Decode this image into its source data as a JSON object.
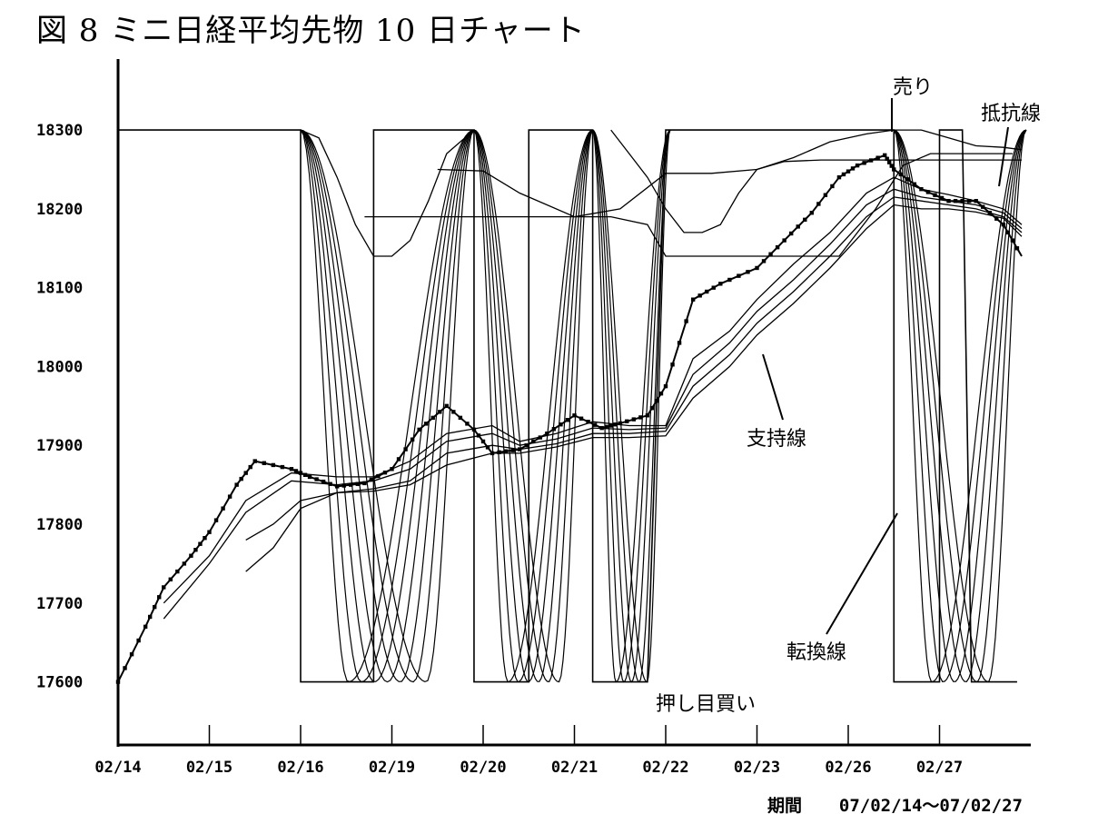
{
  "title": "図 8 ミニ日経平均先物 10 日チャート",
  "period_label": "期間",
  "period_value": "07/02/14〜07/02/27",
  "colors": {
    "line": "#000000",
    "background": "#ffffff"
  },
  "chart_data": {
    "type": "line",
    "title": "図 8 ミニ日経平均先物 10 日チャート",
    "xlabel": "",
    "ylabel": "",
    "categories": [
      "02/14",
      "02/15",
      "02/16",
      "02/19",
      "02/20",
      "02/21",
      "02/22",
      "02/23",
      "02/26",
      "02/27"
    ],
    "xlim": [
      0,
      10
    ],
    "ylim": [
      17520,
      18390
    ],
    "yticks": [
      17600,
      17700,
      17800,
      17900,
      18000,
      18100,
      18200,
      18300
    ],
    "grid": false,
    "legend": "none",
    "annotations": [
      {
        "text": "売り",
        "x": 8.5,
        "y": 18300
      },
      {
        "text": "抵抗線",
        "x": 9.25,
        "y": 18250
      },
      {
        "text": "支持線",
        "x": 7.05,
        "y": 17995
      },
      {
        "text": "転換線",
        "x": 8.55,
        "y": 17795
      },
      {
        "text": "押し目買い",
        "x": 5.9,
        "y": 17600
      }
    ],
    "series": [
      {
        "marker": "square",
        "x": [
          0,
          0.3,
          0.5,
          0.8,
          1.0,
          1.3,
          1.5,
          1.9,
          2.1,
          2.4,
          2.7,
          3.0,
          3.3,
          3.6,
          3.9,
          4.1,
          4.4,
          4.7,
          5.0,
          5.3,
          5.5,
          5.8,
          6.0,
          6.3,
          6.6,
          7.0,
          7.3,
          7.6,
          7.9,
          8.1,
          8.4,
          8.5,
          8.8,
          9.1,
          9.4,
          9.7,
          9.9
        ],
        "y": [
          17600,
          17670,
          17720,
          17760,
          17790,
          17850,
          17880,
          17870,
          17860,
          17848,
          17852,
          17870,
          17920,
          17950,
          17920,
          17890,
          17895,
          17915,
          17938,
          17922,
          17928,
          17938,
          17975,
          18085,
          18105,
          18125,
          18160,
          18195,
          18240,
          18255,
          18268,
          18250,
          18225,
          18210,
          18210,
          18180,
          18140
        ]
      },
      {
        "name": "",
        "x": [
          0.5,
          1.0,
          1.4,
          1.9,
          2.4,
          2.8,
          3.2,
          3.6,
          4.1,
          4.4,
          4.8,
          5.2,
          5.6,
          6.0,
          6.3,
          6.7,
          7.0,
          7.4,
          7.8,
          8.2,
          8.5,
          8.8,
          9.1,
          9.4,
          9.7,
          9.9
        ],
        "y": [
          17700,
          17760,
          17830,
          17865,
          17860,
          17860,
          17880,
          17915,
          17925,
          17905,
          17915,
          17930,
          17925,
          17925,
          18010,
          18045,
          18085,
          18130,
          18170,
          18220,
          18240,
          18225,
          18218,
          18210,
          18200,
          18180
        ]
      },
      {
        "name": "",
        "x": [
          0.5,
          1.0,
          1.4,
          1.9,
          2.4,
          2.8,
          3.2,
          3.6,
          4.1,
          4.4,
          4.8,
          5.2,
          5.6,
          6.0,
          6.3,
          6.7,
          7.0,
          7.4,
          7.8,
          8.2,
          8.5,
          8.8,
          9.1,
          9.4,
          9.7,
          9.9
        ],
        "y": [
          17680,
          17750,
          17815,
          17855,
          17850,
          17855,
          17870,
          17905,
          17915,
          17900,
          17908,
          17922,
          17920,
          17922,
          17990,
          18030,
          18070,
          18110,
          18155,
          18205,
          18225,
          18215,
          18210,
          18205,
          18195,
          18175
        ]
      },
      {
        "name": "",
        "x": [
          1.4,
          1.7,
          2.0,
          2.4,
          2.8,
          3.2,
          3.6,
          4.1,
          4.4,
          4.8,
          5.2,
          5.6,
          6.0,
          6.3,
          6.7,
          7.0,
          7.4,
          7.8,
          8.2,
          8.5,
          8.8,
          9.1,
          9.4,
          9.7,
          9.9
        ],
        "y": [
          17740,
          17770,
          17820,
          17840,
          17845,
          17855,
          17890,
          17900,
          17895,
          17902,
          17915,
          17915,
          17918,
          17975,
          18015,
          18055,
          18095,
          18140,
          18190,
          18215,
          18210,
          18205,
          18200,
          18190,
          18170
        ]
      },
      {
        "name": "",
        "x": [
          1.4,
          1.7,
          2.0,
          2.4,
          2.8,
          3.2,
          3.6,
          4.1,
          4.4,
          4.8,
          5.2,
          5.6,
          6.0,
          6.3,
          6.7,
          7.0,
          7.4,
          7.8,
          8.2,
          8.5,
          8.8,
          9.1,
          9.4,
          9.7,
          9.9
        ],
        "y": [
          17780,
          17800,
          17830,
          17840,
          17842,
          17850,
          17875,
          17890,
          17890,
          17898,
          17910,
          17910,
          17912,
          17960,
          18000,
          18040,
          18080,
          18125,
          18175,
          18205,
          18200,
          18200,
          18196,
          18188,
          18165
        ]
      },
      {
        "name": "",
        "x": [
          3.5,
          4.0,
          4.4,
          5.0,
          5.5,
          6.0,
          6.5,
          7.0,
          7.4,
          7.8,
          8.2,
          8.5,
          8.8,
          9.1,
          9.4,
          9.7,
          9.9
        ],
        "y": [
          18250,
          18248,
          18220,
          18190,
          18200,
          18245,
          18245,
          18250,
          18265,
          18285,
          18295,
          18300,
          18300,
          18290,
          18280,
          18278,
          18275
        ]
      },
      {
        "name": "",
        "x": [
          2.7,
          3.2,
          3.6,
          4.0,
          4.5,
          5.0,
          5.4,
          5.8,
          6.0,
          6.2,
          6.5,
          7.0,
          7.5,
          7.9,
          8.3,
          8.6,
          8.9,
          9.2,
          9.5,
          9.8
        ],
        "y": [
          18190,
          18190,
          18190,
          18190,
          18190,
          18190,
          18190,
          18180,
          18140,
          18140,
          18140,
          18140,
          18140,
          18140,
          18200,
          18255,
          18270,
          18270,
          18270,
          18270
        ]
      },
      {
        "name": "",
        "x": [
          2.0,
          2.2,
          2.4,
          2.6,
          2.8,
          3.0,
          3.2,
          3.4,
          3.6,
          3.9
        ],
        "y": [
          18300,
          18290,
          18240,
          18180,
          18140,
          18140,
          18160,
          18210,
          18270,
          18300
        ]
      },
      {
        "name": "",
        "x": [
          5.4,
          5.6,
          5.8,
          6.0,
          6.2,
          6.4,
          6.6,
          6.8,
          7.0,
          7.3,
          7.7,
          8.0,
          8.4,
          8.7,
          9.0,
          9.3,
          9.6,
          9.9
        ],
        "y": [
          18300,
          18270,
          18240,
          18200,
          18170,
          18170,
          18180,
          18220,
          18250,
          18260,
          18262,
          18262,
          18262,
          18262,
          18262,
          18262,
          18262,
          18262
        ]
      }
    ],
    "envelope": {
      "levels": [
        17600,
        18300
      ],
      "steps": [
        [
          0,
          2.0,
          18300
        ],
        [
          2.0,
          2.8,
          17600
        ],
        [
          2.8,
          3.9,
          18300
        ],
        [
          3.9,
          4.5,
          17600
        ],
        [
          4.5,
          5.2,
          18300
        ],
        [
          5.2,
          5.8,
          17600
        ],
        [
          6.0,
          8.5,
          18300
        ],
        [
          8.5,
          9.0,
          17600
        ],
        [
          9.0,
          9.25,
          18300
        ],
        [
          9.35,
          9.85,
          17600
        ]
      ]
    },
    "oscillation": {
      "cycles": [
        {
          "x_start": 2.0,
          "x_end": 3.9,
          "low": 17600,
          "high": 18300,
          "count": 7
        },
        {
          "x_start": 3.9,
          "x_end": 5.2,
          "low": 17600,
          "high": 18300,
          "count": 6
        },
        {
          "x_start": 5.2,
          "x_end": 6.05,
          "low": 17600,
          "high": 18300,
          "count": 5
        },
        {
          "x_start": 8.5,
          "x_end": 9.95,
          "low": 17600,
          "high": 18300,
          "count": 6
        }
      ]
    }
  }
}
